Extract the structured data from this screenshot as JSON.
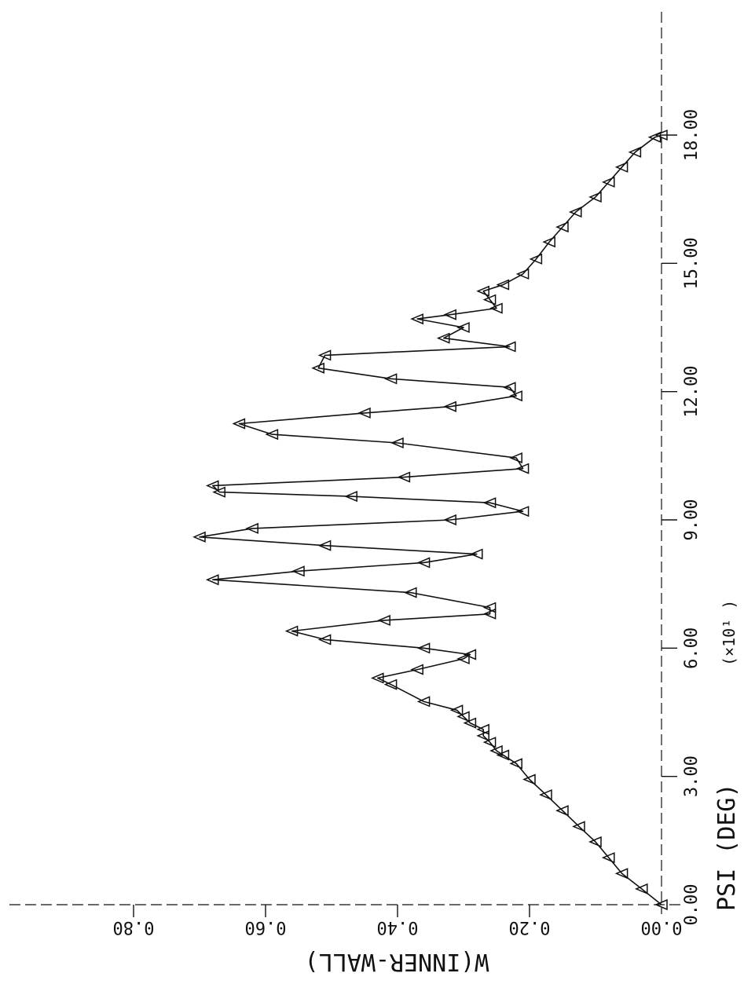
{
  "chart_data": {
    "type": "line",
    "orientation": "rotated 90 degrees clockwise (x axis runs bottom-to-top)",
    "xlabel": "PSI (DEG)",
    "xlabel_scale": "(×10¹ )",
    "ylabel": "W(INNER-WALL)",
    "xlim": [
      0,
      18
    ],
    "ylim": [
      0,
      0.8
    ],
    "x_ticks": [
      "0.00",
      "3.00",
      "6.00",
      "9.00",
      "12.00",
      "15.00",
      "18.00"
    ],
    "y_ticks": [
      "0.00",
      "0.20",
      "0.40",
      "0.60",
      "0.80"
    ],
    "grid": false,
    "marker": "triangle",
    "series": [
      {
        "x": [
          0.0,
          0.37,
          0.73,
          1.1,
          1.47,
          1.83,
          2.2,
          2.57,
          2.93,
          3.3,
          3.5,
          3.6,
          3.8,
          3.95,
          4.1,
          4.25,
          4.4,
          4.55,
          4.75,
          5.15,
          5.3,
          5.5,
          5.75,
          5.85,
          6.0,
          6.2,
          6.4,
          6.65,
          6.8,
          6.95,
          7.3,
          7.6,
          7.8,
          8.0,
          8.2,
          8.4,
          8.6,
          8.8,
          9.0,
          9.2,
          9.4,
          9.55,
          9.65,
          9.8,
          10.0,
          10.2,
          10.45,
          10.8,
          11.0,
          11.25,
          11.5,
          11.65,
          11.9,
          12.1,
          12.3,
          12.55,
          12.85,
          13.05,
          13.25,
          13.5,
          13.7,
          13.8,
          13.95,
          14.15,
          14.35,
          14.5,
          14.75,
          15.1,
          15.5,
          15.85,
          16.2,
          16.55,
          16.9,
          17.25,
          17.6,
          17.95,
          18.0
        ],
        "y": [
          0.0,
          0.03,
          0.06,
          0.08,
          0.1,
          0.125,
          0.15,
          0.175,
          0.2,
          0.22,
          0.24,
          0.25,
          0.26,
          0.27,
          0.27,
          0.29,
          0.3,
          0.31,
          0.36,
          0.41,
          0.43,
          0.37,
          0.3,
          0.29,
          0.36,
          0.51,
          0.56,
          0.42,
          0.26,
          0.26,
          0.38,
          0.68,
          0.55,
          0.36,
          0.28,
          0.51,
          0.7,
          0.62,
          0.32,
          0.21,
          0.26,
          0.47,
          0.67,
          0.68,
          0.39,
          0.21,
          0.22,
          0.4,
          0.59,
          0.64,
          0.45,
          0.32,
          0.22,
          0.23,
          0.41,
          0.52,
          0.51,
          0.23,
          0.33,
          0.3,
          0.37,
          0.32,
          0.25,
          0.26,
          0.27,
          0.24,
          0.21,
          0.19,
          0.17,
          0.15,
          0.13,
          0.1,
          0.08,
          0.06,
          0.04,
          0.01,
          0.0
        ]
      }
    ]
  }
}
